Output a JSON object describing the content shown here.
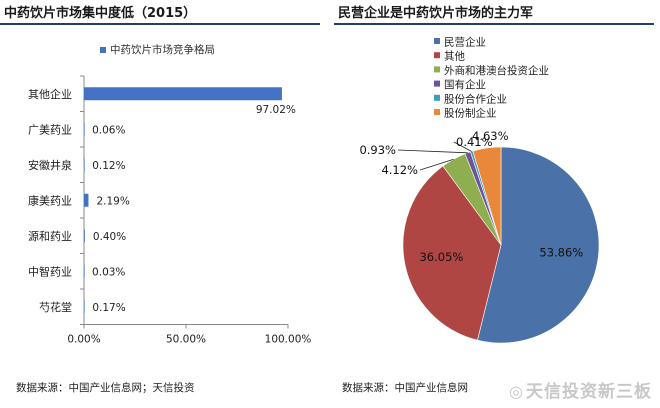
{
  "chart_data": [
    {
      "type": "bar",
      "orientation": "horizontal",
      "title": "中药饮片市场集中度低（2015）",
      "legend": {
        "label": "中药饮片市场竞争格局",
        "placement": "top"
      },
      "categories": [
        "其他企业",
        "广美药业",
        "安徽井泉",
        "康美药业",
        "源和药业",
        "中智药业",
        "芍花堂"
      ],
      "values": [
        97.02,
        0.06,
        0.12,
        2.19,
        0.4,
        0.03,
        0.17
      ],
      "value_labels": [
        "97.02%",
        "0.06%",
        "0.12%",
        "2.19%",
        "0.40%",
        "0.03%",
        "0.17%"
      ],
      "xlim": [
        0,
        100
      ],
      "x_ticks": [
        0,
        50,
        100
      ],
      "x_tick_labels": [
        "0.00%",
        "50.00%",
        "100.00%"
      ],
      "grid": false,
      "bar_color": "#4472c4",
      "source": "数据来源：中国产业信息网；天信投资"
    },
    {
      "type": "pie",
      "title": "民营企业是中药饮片市场的主力军",
      "legend_placement": "top",
      "slices": [
        {
          "label": "民营企业",
          "value": 53.86,
          "value_label": "53.86%",
          "color": "#4a72a8"
        },
        {
          "label": "其他",
          "value": 36.05,
          "value_label": "36.05%",
          "color": "#b04643"
        },
        {
          "label": "外商和港澳台投资企业",
          "value": 4.12,
          "value_label": "4.12%",
          "color": "#8fae4f"
        },
        {
          "label": "国有企业",
          "value": 0.93,
          "value_label": "0.93%",
          "color": "#6e539a"
        },
        {
          "label": "股份合作企业",
          "value": 0.41,
          "value_label": "0.41%",
          "color": "#3f9fbb"
        },
        {
          "label": "股份制企业",
          "value": 4.63,
          "value_label": "4.63%",
          "color": "#e9873a"
        }
      ],
      "source": "数据来源：中国产业信息网"
    }
  ],
  "watermark": "天信投资新三板"
}
